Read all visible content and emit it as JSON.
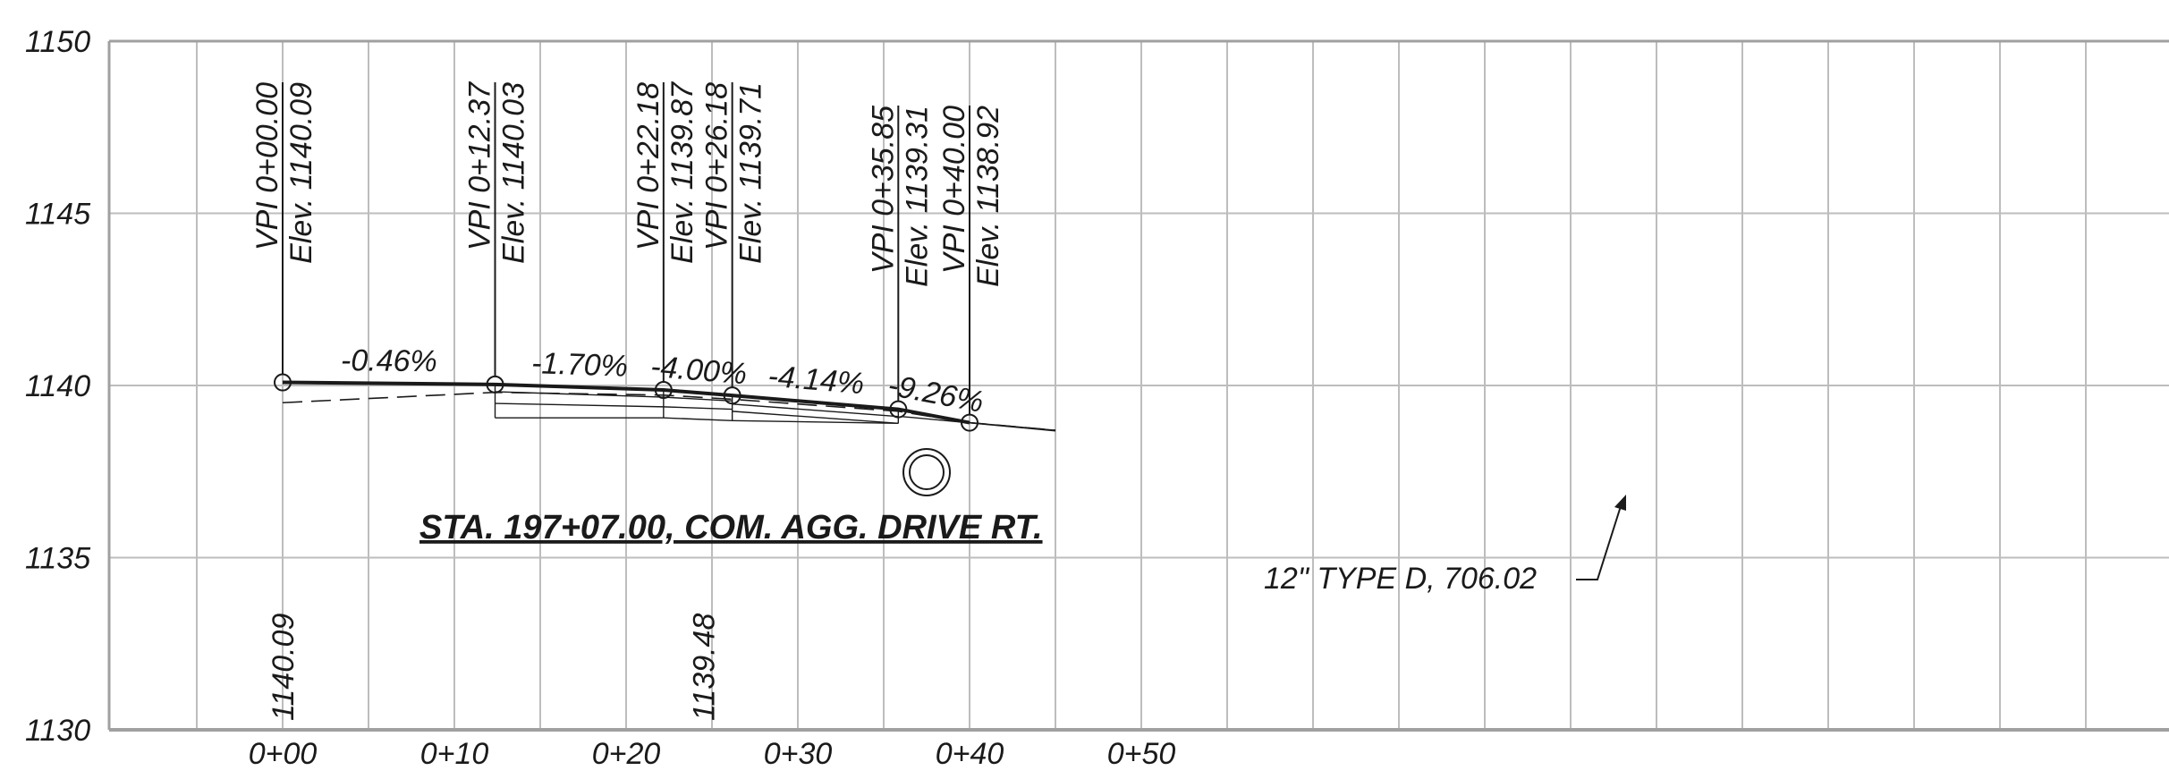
{
  "elev_ticks": [
    "1150",
    "1145",
    "1140",
    "1135",
    "1130"
  ],
  "sta_ticks": [
    "0+00",
    "0+10",
    "0+20",
    "0+30",
    "0+40",
    "0+50"
  ],
  "vpis": [
    {
      "sta": 0.0,
      "elev": 1140.09,
      "sta_label": "VPI 0+00.00",
      "elev_label": "Elev. 1140.09"
    },
    {
      "sta": 12.37,
      "elev": 1140.03,
      "sta_label": "VPI 0+12.37",
      "elev_label": "Elev. 1140.03"
    },
    {
      "sta": 22.18,
      "elev": 1139.87,
      "sta_label": "VPI 0+22.18",
      "elev_label": "Elev. 1139.87"
    },
    {
      "sta": 26.18,
      "elev": 1139.71,
      "sta_label": "VPI 0+26.18",
      "elev_label": "Elev. 1139.71"
    },
    {
      "sta": 35.85,
      "elev": 1139.31,
      "sta_label": "VPI 0+35.85",
      "elev_label": "Elev. 1139.31"
    },
    {
      "sta": 40.0,
      "elev": 1138.92,
      "sta_label": "VPI 0+40.00",
      "elev_label": "Elev. 1138.92"
    }
  ],
  "grade_labels": [
    "-0.46%",
    "-1.70%",
    "-4.00%",
    "-4.14%",
    "-9.26%"
  ],
  "bottom_elevations": [
    {
      "sta": 0.0,
      "text": "1140.09"
    },
    {
      "sta": 24.5,
      "text": "1139.48"
    }
  ],
  "title": "STA. 197+07.00, COM. AGG. DRIVE RT.",
  "pipe_callout": "12\" TYPE D, 706.02",
  "colors": {
    "grid": "#bdbdbd",
    "frame": "#a0a0a0",
    "ink": "#1a1a1a"
  }
}
